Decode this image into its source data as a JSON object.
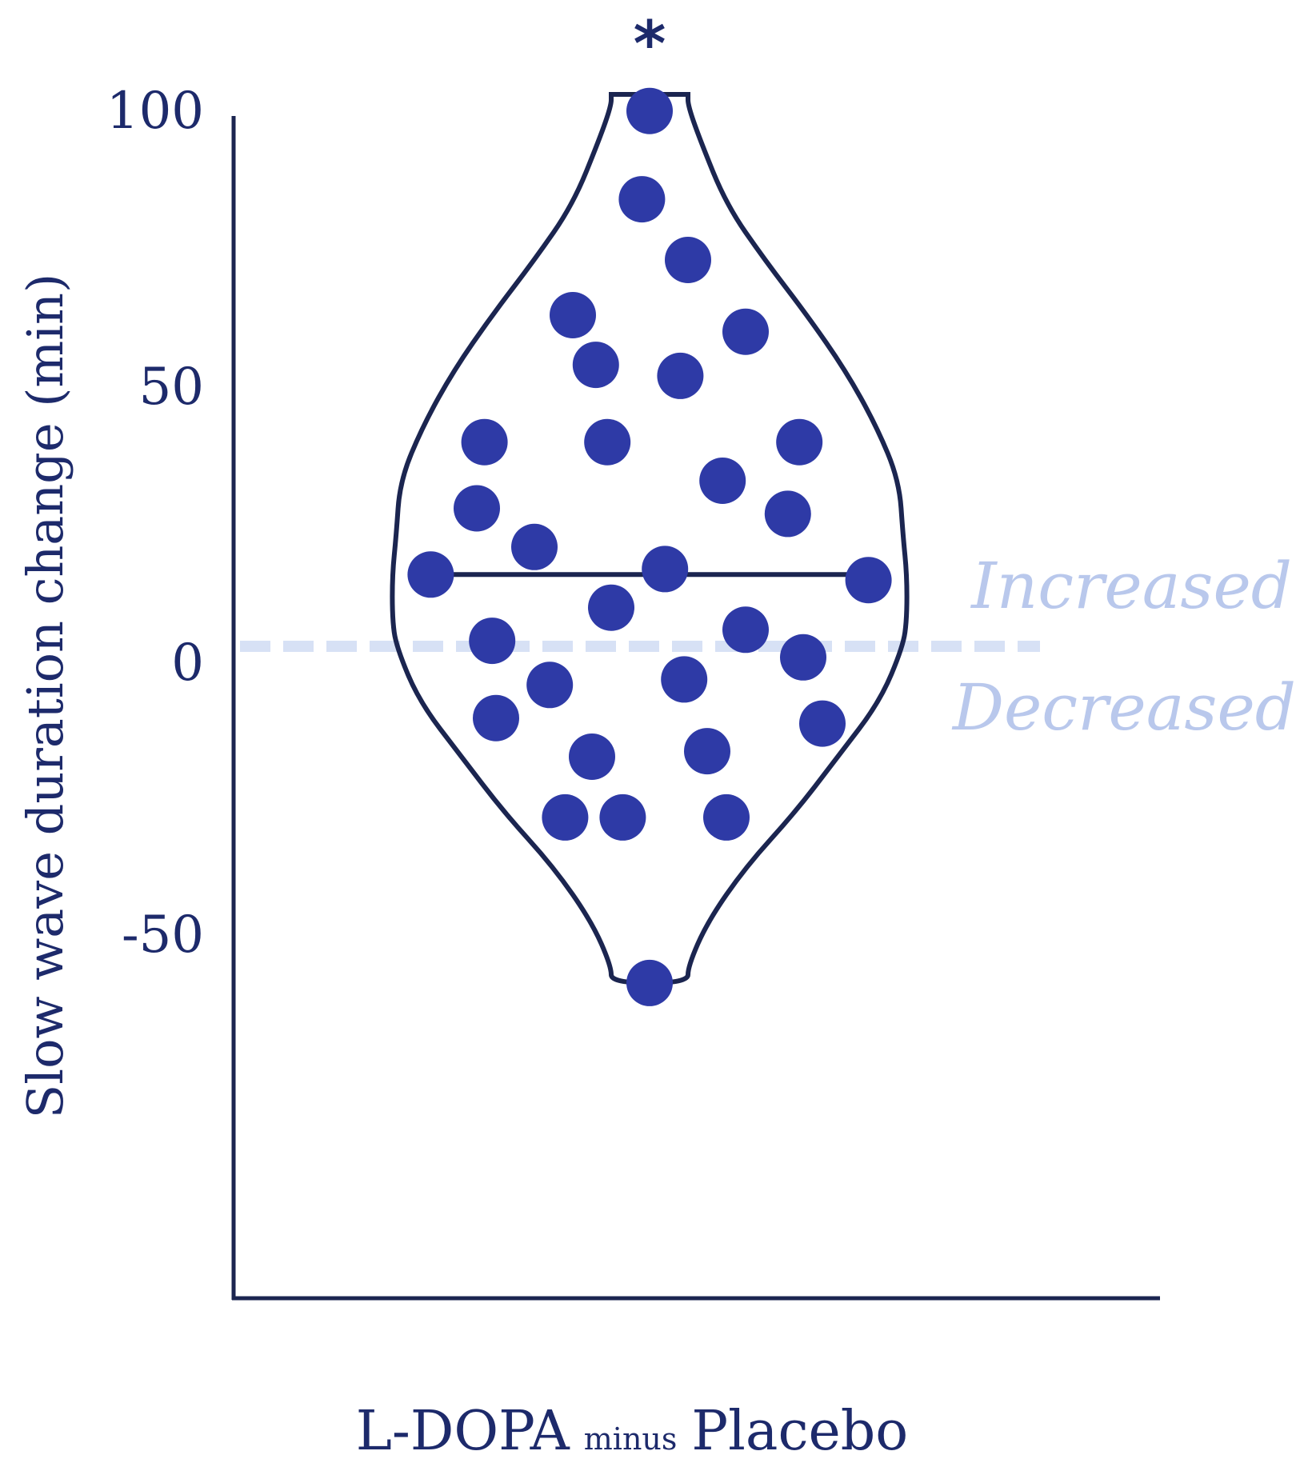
{
  "chart_data": {
    "type": "violin",
    "ylabel": "Slow wave duration change (min)",
    "xlabel_parts": [
      "L-DOPA",
      "minus",
      "Placebo"
    ],
    "yticks": [
      100,
      50,
      0,
      -50
    ],
    "ylim": [
      -120,
      100
    ],
    "reference_line": 0,
    "median": 13,
    "significance_marker": "*",
    "region_labels": {
      "above": "Increased",
      "below": "Decreased"
    },
    "points": [
      {
        "jitter": 0.0,
        "value": 97
      },
      {
        "jitter": -0.02,
        "value": 81
      },
      {
        "jitter": 0.1,
        "value": 70
      },
      {
        "jitter": -0.2,
        "value": 60
      },
      {
        "jitter": 0.25,
        "value": 57
      },
      {
        "jitter": -0.14,
        "value": 51
      },
      {
        "jitter": 0.08,
        "value": 49
      },
      {
        "jitter": -0.43,
        "value": 37
      },
      {
        "jitter": -0.11,
        "value": 37
      },
      {
        "jitter": 0.39,
        "value": 37
      },
      {
        "jitter": 0.19,
        "value": 30
      },
      {
        "jitter": -0.45,
        "value": 25
      },
      {
        "jitter": 0.36,
        "value": 24
      },
      {
        "jitter": -0.3,
        "value": 18
      },
      {
        "jitter": 0.04,
        "value": 14
      },
      {
        "jitter": -0.57,
        "value": 13
      },
      {
        "jitter": 0.57,
        "value": 12
      },
      {
        "jitter": -0.1,
        "value": 7
      },
      {
        "jitter": 0.25,
        "value": 3
      },
      {
        "jitter": -0.41,
        "value": 1
      },
      {
        "jitter": 0.4,
        "value": -2
      },
      {
        "jitter": -0.26,
        "value": -7
      },
      {
        "jitter": 0.09,
        "value": -6
      },
      {
        "jitter": -0.4,
        "value": -13
      },
      {
        "jitter": 0.45,
        "value": -14
      },
      {
        "jitter": -0.15,
        "value": -20
      },
      {
        "jitter": 0.15,
        "value": -19
      },
      {
        "jitter": -0.22,
        "value": -31
      },
      {
        "jitter": -0.07,
        "value": -31
      },
      {
        "jitter": 0.2,
        "value": -31
      },
      {
        "jitter": 0.0,
        "value": -61
      }
    ],
    "violin_profile": [
      {
        "value": 100,
        "halfwidth": 0.1
      },
      {
        "value": 98,
        "halfwidth": 0.1
      },
      {
        "value": 92,
        "halfwidth": 0.13
      },
      {
        "value": 80,
        "halfwidth": 0.2
      },
      {
        "value": 70,
        "halfwidth": 0.3
      },
      {
        "value": 60,
        "halfwidth": 0.41
      },
      {
        "value": 50,
        "halfwidth": 0.51
      },
      {
        "value": 40,
        "halfwidth": 0.59
      },
      {
        "value": 30,
        "halfwidth": 0.65
      },
      {
        "value": 20,
        "halfwidth": 0.66
      },
      {
        "value": 13,
        "halfwidth": 0.67
      },
      {
        "value": 5,
        "halfwidth": 0.67
      },
      {
        "value": 0,
        "halfwidth": 0.66
      },
      {
        "value": -10,
        "halfwidth": 0.6
      },
      {
        "value": -20,
        "halfwidth": 0.49
      },
      {
        "value": -30,
        "halfwidth": 0.38
      },
      {
        "value": -40,
        "halfwidth": 0.25
      },
      {
        "value": -50,
        "halfwidth": 0.15
      },
      {
        "value": -58,
        "halfwidth": 0.1
      },
      {
        "value": -61,
        "halfwidth": 0.1
      }
    ],
    "colors": {
      "points": "#2e3aa6",
      "outline": "#1b2550",
      "axis": "#1b2550",
      "reference_line": "#d7e1f5",
      "region_labels": "#b9c8ec",
      "text": "#1d2a6b"
    }
  }
}
